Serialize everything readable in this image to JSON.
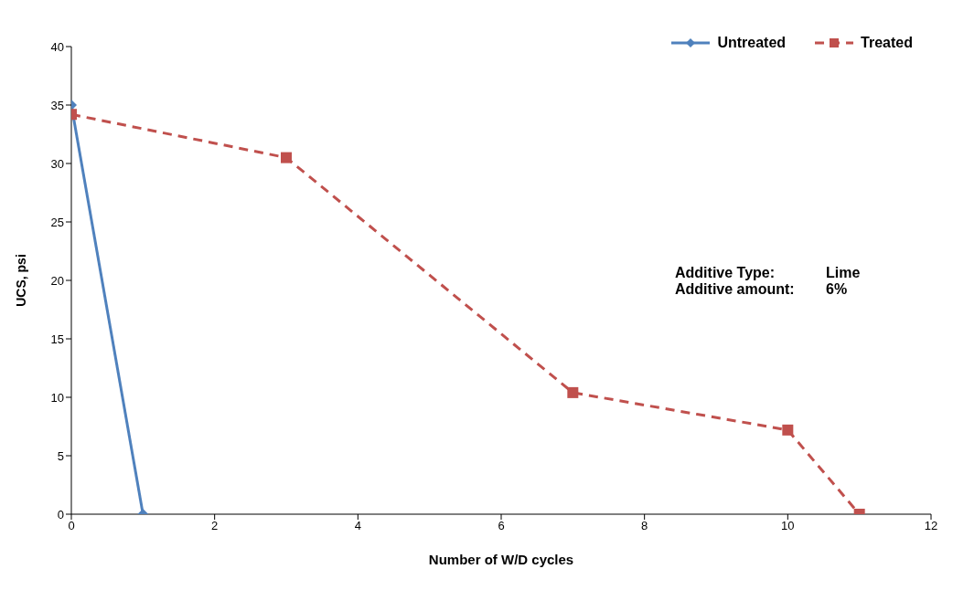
{
  "chart_data": {
    "type": "line",
    "xlabel": "Number of W/D cycles",
    "ylabel": "UCS, psi",
    "xlim": [
      0,
      12
    ],
    "xticks": [
      0,
      2,
      4,
      6,
      8,
      10,
      12
    ],
    "ylim": [
      0,
      40
    ],
    "yticks": [
      0,
      5,
      10,
      15,
      20,
      25,
      30,
      35,
      40
    ],
    "grid": false,
    "legend": "top right",
    "series": [
      {
        "name": "Untreated",
        "color": "#4f81bd",
        "x": [
          0,
          1
        ],
        "values": [
          35,
          0
        ],
        "marker": "diamond",
        "line_style": "solid"
      },
      {
        "name": "Treated",
        "color": "#c0504d",
        "x": [
          0,
          3,
          7,
          10,
          11
        ],
        "values": [
          34.2,
          30.5,
          10.4,
          7.2,
          0
        ],
        "marker": "square",
        "line_style": "dashed"
      }
    ],
    "annotations": [
      "Additive Type:",
      "Lime",
      "Additive amount:",
      "6%"
    ]
  }
}
